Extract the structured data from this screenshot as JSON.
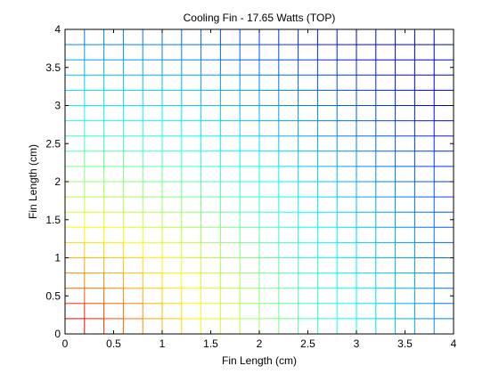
{
  "chart_data": {
    "type": "heatmap",
    "title": "Cooling Fin - 17.65 Watts (TOP)",
    "xlabel": "Fin Length (cm)",
    "ylabel": "Fin Length (cm)",
    "xlim": [
      0,
      4
    ],
    "ylim": [
      0,
      4
    ],
    "x_ticks": [
      "0",
      "0.5",
      "1",
      "1.5",
      "2",
      "2.5",
      "3",
      "3.5",
      "4"
    ],
    "y_ticks": [
      "0",
      "0.5",
      "1",
      "1.5",
      "2",
      "2.5",
      "3",
      "3.5",
      "4"
    ],
    "grid_spacing": 0.2,
    "colormap": "jet",
    "style": "mesh",
    "description_values": {
      "hot_corner": [
        0,
        0
      ],
      "cold_corner": [
        4,
        4
      ]
    }
  }
}
